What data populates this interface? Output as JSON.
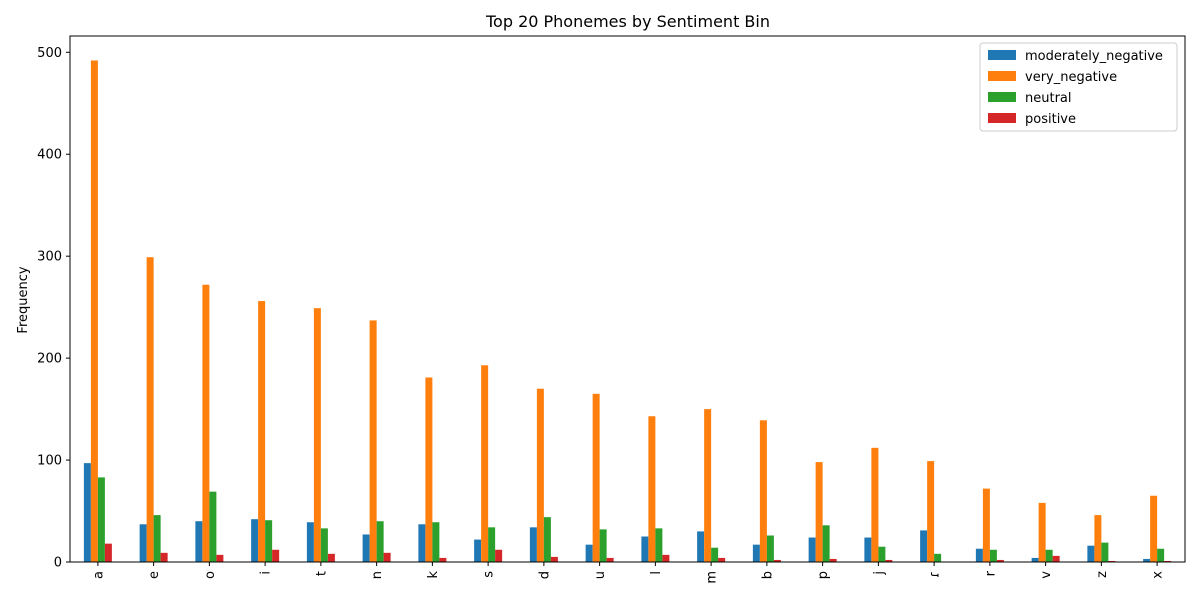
{
  "chart_data": {
    "type": "bar",
    "title": "Top 20 Phonemes by Sentiment Bin",
    "xlabel": "",
    "ylabel": "Frequency",
    "ylim": [
      0,
      516
    ],
    "yticks": [
      0,
      100,
      200,
      300,
      400,
      500
    ],
    "grid": false,
    "legend_position": "top-right",
    "categories": [
      "a",
      "e",
      "o",
      "i",
      "t",
      "n",
      "k",
      "s",
      "d",
      "u",
      "l",
      "m",
      "b",
      "p",
      "j",
      "ɾ",
      "r",
      "v",
      "z",
      "x"
    ],
    "series": [
      {
        "name": "moderately_negative",
        "color": "#1f77b4",
        "values": [
          97,
          37,
          40,
          42,
          39,
          27,
          37,
          22,
          34,
          17,
          25,
          30,
          17,
          24,
          24,
          31,
          13,
          4,
          16,
          3
        ]
      },
      {
        "name": "very_negative",
        "color": "#ff7f0e",
        "values": [
          492,
          299,
          272,
          256,
          249,
          237,
          181,
          193,
          170,
          165,
          143,
          150,
          139,
          98,
          112,
          99,
          72,
          58,
          46,
          65
        ]
      },
      {
        "name": "neutral",
        "color": "#2ca02c",
        "values": [
          83,
          46,
          69,
          41,
          33,
          40,
          39,
          34,
          44,
          32,
          33,
          14,
          26,
          36,
          15,
          8,
          12,
          12,
          19,
          13
        ]
      },
      {
        "name": "positive",
        "color": "#d62728",
        "values": [
          18,
          9,
          7,
          12,
          8,
          9,
          4,
          12,
          5,
          4,
          7,
          4,
          2,
          3,
          2,
          0,
          2,
          6,
          1,
          1
        ]
      }
    ]
  }
}
